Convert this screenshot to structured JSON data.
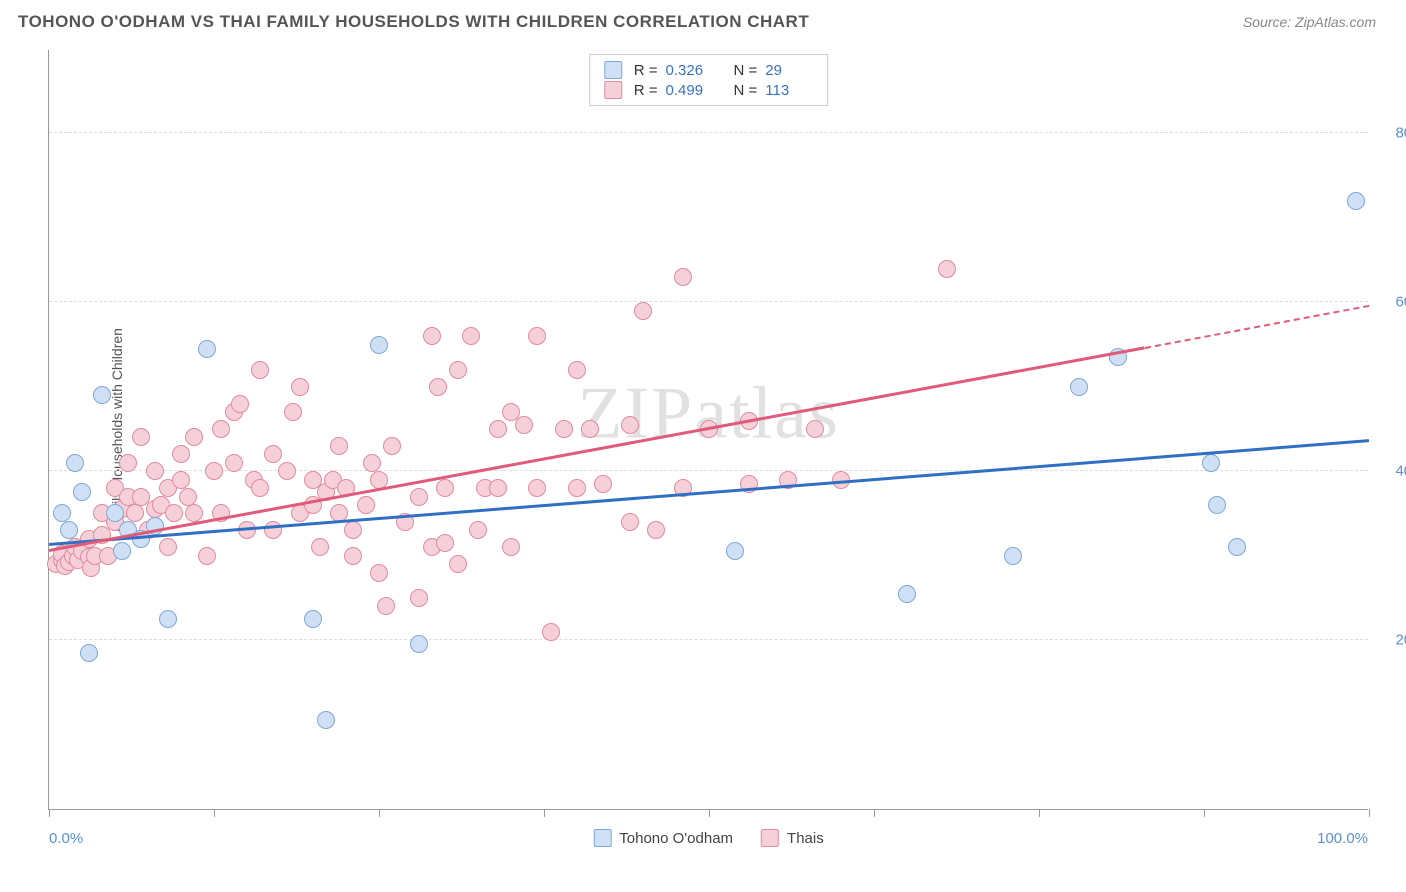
{
  "header": {
    "title": "TOHONO O'ODHAM VS THAI FAMILY HOUSEHOLDS WITH CHILDREN CORRELATION CHART",
    "source": "Source: ZipAtlas.com"
  },
  "chart": {
    "type": "scatter",
    "yaxis_title": "Family Households with Children",
    "xlim": [
      0,
      100
    ],
    "ylim": [
      0,
      90
    ],
    "xtick_positions": [
      0,
      12.5,
      25,
      37.5,
      50,
      62.5,
      75,
      87.5,
      100
    ],
    "xaxis_left_label": "0.0%",
    "xaxis_right_label": "100.0%",
    "yticks": [
      {
        "value": 20,
        "label": "20.0%"
      },
      {
        "value": 40,
        "label": "40.0%"
      },
      {
        "value": 60,
        "label": "60.0%"
      },
      {
        "value": 80,
        "label": "80.0%"
      }
    ],
    "grid_color": "#dddddd",
    "background_color": "#ffffff",
    "watermark": "ZIPatlas",
    "series": [
      {
        "name": "Tohono O'odham",
        "marker_fill": "#cfe0f4",
        "marker_stroke": "#7da8d9",
        "marker_radius": 9,
        "trend_color": "#2f6fc4",
        "trend_start": {
          "x": 0,
          "y": 31.2
        },
        "trend_end": {
          "x": 100,
          "y": 43.5
        },
        "R": "0.326",
        "N": "29",
        "points": [
          {
            "x": 1,
            "y": 35
          },
          {
            "x": 1.5,
            "y": 33
          },
          {
            "x": 2,
            "y": 41
          },
          {
            "x": 2.5,
            "y": 37.5
          },
          {
            "x": 3,
            "y": 18.5
          },
          {
            "x": 4,
            "y": 49
          },
          {
            "x": 5,
            "y": 35
          },
          {
            "x": 5.5,
            "y": 30.5
          },
          {
            "x": 6,
            "y": 33
          },
          {
            "x": 7,
            "y": 32
          },
          {
            "x": 8,
            "y": 33.5
          },
          {
            "x": 9,
            "y": 22.5
          },
          {
            "x": 12,
            "y": 54.5
          },
          {
            "x": 20,
            "y": 22.5
          },
          {
            "x": 21,
            "y": 10.5
          },
          {
            "x": 25,
            "y": 55
          },
          {
            "x": 28,
            "y": 19.5
          },
          {
            "x": 52,
            "y": 30.5
          },
          {
            "x": 65,
            "y": 25.5
          },
          {
            "x": 73,
            "y": 30
          },
          {
            "x": 78,
            "y": 50
          },
          {
            "x": 81,
            "y": 53.5
          },
          {
            "x": 88,
            "y": 41
          },
          {
            "x": 88.5,
            "y": 36
          },
          {
            "x": 90,
            "y": 31
          },
          {
            "x": 99,
            "y": 72
          }
        ]
      },
      {
        "name": "Thais",
        "marker_fill": "#f6d0d8",
        "marker_stroke": "#e08aa0",
        "trend_color": "#e05a7a",
        "marker_radius": 9,
        "trend_start": {
          "x": 0,
          "y": 30.5
        },
        "trend_end": {
          "x": 83,
          "y": 54.5
        },
        "trend_dashed_end": {
          "x": 100,
          "y": 59.5
        },
        "R": "0.499",
        "N": "113",
        "points": [
          {
            "x": 0.5,
            "y": 29
          },
          {
            "x": 1,
            "y": 29.5
          },
          {
            "x": 1,
            "y": 30.2
          },
          {
            "x": 1.2,
            "y": 28.8
          },
          {
            "x": 1.5,
            "y": 29.2
          },
          {
            "x": 1.8,
            "y": 30
          },
          {
            "x": 2,
            "y": 31
          },
          {
            "x": 2.2,
            "y": 29.5
          },
          {
            "x": 2.5,
            "y": 30.5
          },
          {
            "x": 3,
            "y": 29.8
          },
          {
            "x": 3,
            "y": 32
          },
          {
            "x": 3.2,
            "y": 28.5
          },
          {
            "x": 3.5,
            "y": 30
          },
          {
            "x": 4,
            "y": 35
          },
          {
            "x": 4,
            "y": 32.5
          },
          {
            "x": 4.5,
            "y": 30
          },
          {
            "x": 5,
            "y": 38
          },
          {
            "x": 5,
            "y": 34
          },
          {
            "x": 5.5,
            "y": 35.5
          },
          {
            "x": 6,
            "y": 37
          },
          {
            "x": 6,
            "y": 41
          },
          {
            "x": 6.5,
            "y": 35
          },
          {
            "x": 7,
            "y": 44
          },
          {
            "x": 7,
            "y": 37
          },
          {
            "x": 7.5,
            "y": 33
          },
          {
            "x": 8,
            "y": 35.5
          },
          {
            "x": 8,
            "y": 40
          },
          {
            "x": 8.5,
            "y": 36
          },
          {
            "x": 9,
            "y": 38
          },
          {
            "x": 9,
            "y": 31
          },
          {
            "x": 9.5,
            "y": 35
          },
          {
            "x": 10,
            "y": 42
          },
          {
            "x": 10,
            "y": 39
          },
          {
            "x": 10.5,
            "y": 37
          },
          {
            "x": 11,
            "y": 35
          },
          {
            "x": 11,
            "y": 44
          },
          {
            "x": 12,
            "y": 30
          },
          {
            "x": 12.5,
            "y": 40
          },
          {
            "x": 13,
            "y": 45
          },
          {
            "x": 13,
            "y": 35
          },
          {
            "x": 14,
            "y": 47
          },
          {
            "x": 14,
            "y": 41
          },
          {
            "x": 14.5,
            "y": 48
          },
          {
            "x": 15,
            "y": 33
          },
          {
            "x": 15.5,
            "y": 39
          },
          {
            "x": 16,
            "y": 52
          },
          {
            "x": 16,
            "y": 38
          },
          {
            "x": 17,
            "y": 42
          },
          {
            "x": 17,
            "y": 33
          },
          {
            "x": 18,
            "y": 40
          },
          {
            "x": 18.5,
            "y": 47
          },
          {
            "x": 19,
            "y": 35
          },
          {
            "x": 19,
            "y": 50
          },
          {
            "x": 20,
            "y": 39
          },
          {
            "x": 20,
            "y": 36
          },
          {
            "x": 20.5,
            "y": 31
          },
          {
            "x": 21,
            "y": 37.5
          },
          {
            "x": 21.5,
            "y": 39
          },
          {
            "x": 22,
            "y": 35
          },
          {
            "x": 22,
            "y": 43
          },
          {
            "x": 22.5,
            "y": 38
          },
          {
            "x": 23,
            "y": 30
          },
          {
            "x": 23,
            "y": 33
          },
          {
            "x": 24,
            "y": 36
          },
          {
            "x": 24.5,
            "y": 41
          },
          {
            "x": 25,
            "y": 39
          },
          {
            "x": 25,
            "y": 28
          },
          {
            "x": 25.5,
            "y": 24
          },
          {
            "x": 26,
            "y": 43
          },
          {
            "x": 27,
            "y": 34
          },
          {
            "x": 28,
            "y": 25
          },
          {
            "x": 28,
            "y": 37
          },
          {
            "x": 29,
            "y": 56
          },
          {
            "x": 29,
            "y": 31
          },
          {
            "x": 29.5,
            "y": 50
          },
          {
            "x": 30,
            "y": 38
          },
          {
            "x": 30,
            "y": 31.5
          },
          {
            "x": 31,
            "y": 52
          },
          {
            "x": 31,
            "y": 29
          },
          {
            "x": 32,
            "y": 56
          },
          {
            "x": 32.5,
            "y": 33
          },
          {
            "x": 33,
            "y": 38
          },
          {
            "x": 34,
            "y": 45
          },
          {
            "x": 34,
            "y": 38
          },
          {
            "x": 35,
            "y": 31
          },
          {
            "x": 35,
            "y": 47
          },
          {
            "x": 36,
            "y": 45.5
          },
          {
            "x": 37,
            "y": 56
          },
          {
            "x": 37,
            "y": 38
          },
          {
            "x": 38,
            "y": 21
          },
          {
            "x": 39,
            "y": 45
          },
          {
            "x": 40,
            "y": 38
          },
          {
            "x": 40,
            "y": 52
          },
          {
            "x": 41,
            "y": 45
          },
          {
            "x": 42,
            "y": 38.5
          },
          {
            "x": 44,
            "y": 45.5
          },
          {
            "x": 44,
            "y": 34
          },
          {
            "x": 45,
            "y": 59
          },
          {
            "x": 46,
            "y": 33
          },
          {
            "x": 48,
            "y": 38
          },
          {
            "x": 48,
            "y": 63
          },
          {
            "x": 50,
            "y": 45
          },
          {
            "x": 53,
            "y": 38.5
          },
          {
            "x": 53,
            "y": 46
          },
          {
            "x": 56,
            "y": 39
          },
          {
            "x": 58,
            "y": 45
          },
          {
            "x": 60,
            "y": 39
          },
          {
            "x": 68,
            "y": 64
          }
        ]
      }
    ],
    "legend_top": [
      {
        "swatch_fill": "#cfe0f4",
        "swatch_stroke": "#7da8d9",
        "R": "0.326",
        "N": "29"
      },
      {
        "swatch_fill": "#f6d0d8",
        "swatch_stroke": "#e08aa0",
        "R": "0.499",
        "N": "113"
      }
    ],
    "legend_bottom": [
      {
        "swatch_fill": "#cfe0f4",
        "swatch_stroke": "#7da8d9",
        "label": "Tohono O'odham"
      },
      {
        "swatch_fill": "#f6d0d8",
        "swatch_stroke": "#e08aa0",
        "label": "Thais"
      }
    ]
  }
}
